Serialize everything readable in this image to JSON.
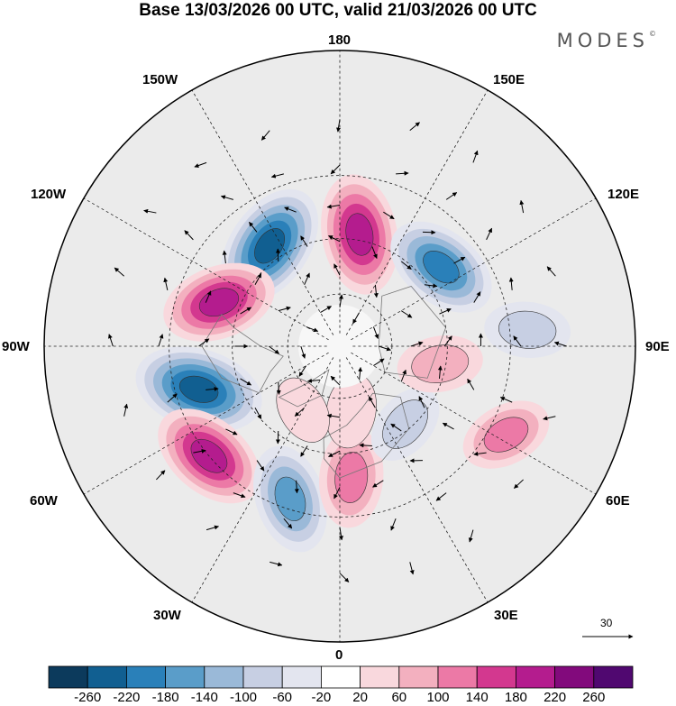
{
  "header": {
    "title": "Base 13/03/2026 00 UTC, valid 21/03/2026 00 UTC",
    "brand": "MODES",
    "brand_mark": "©"
  },
  "map": {
    "longitude_labels": {
      "top": "180",
      "bottom": "0",
      "left": "90W",
      "right": "90E",
      "upper_left_1": "150W",
      "upper_left_2": "120W",
      "lower_left_1": "60W",
      "lower_left_2": "30W",
      "upper_right_1": "150E",
      "upper_right_2": "120E",
      "lower_right_1": "60E",
      "lower_right_2": "30E"
    },
    "reference_vector": {
      "label": "30"
    }
  },
  "colorbar": {
    "colors": [
      "#0c3a5c",
      "#115f91",
      "#2a80b9",
      "#5a9dc9",
      "#9ab9d8",
      "#c7cfe3",
      "#e3e5ef",
      "#ffffff",
      "#f9d8dd",
      "#f3b0bf",
      "#ec79a6",
      "#d3388f",
      "#b41c8e",
      "#820a7c",
      "#500870"
    ],
    "ticks": [
      "-260",
      "-220",
      "-180",
      "-140",
      "-100",
      "-60",
      "-20",
      "20",
      "60",
      "100",
      "140",
      "180",
      "220",
      "260"
    ]
  },
  "anomaly_centers": [
    {
      "lon": -145,
      "lat": 45,
      "value": -240
    },
    {
      "lon": 170,
      "lat": 48,
      "value": 220
    },
    {
      "lon": 128,
      "lat": 43,
      "value": -200
    },
    {
      "lon": -110,
      "lat": 43,
      "value": 200
    },
    {
      "lon": -73,
      "lat": 37,
      "value": -250
    },
    {
      "lon": -50,
      "lat": 30,
      "value": 210
    },
    {
      "lon": -18,
      "lat": 33,
      "value": -180
    },
    {
      "lon": 5,
      "lat": 42,
      "value": 150
    },
    {
      "lon": 40,
      "lat": 52,
      "value": -90
    },
    {
      "lon": 80,
      "lat": 52,
      "value": 100
    },
    {
      "lon": 62,
      "lat": 25,
      "value": 120
    },
    {
      "lon": 95,
      "lat": 25,
      "value": -100
    },
    {
      "lon": 10,
      "lat": 65,
      "value": 60
    },
    {
      "lon": -30,
      "lat": 62,
      "value": 40
    }
  ]
}
